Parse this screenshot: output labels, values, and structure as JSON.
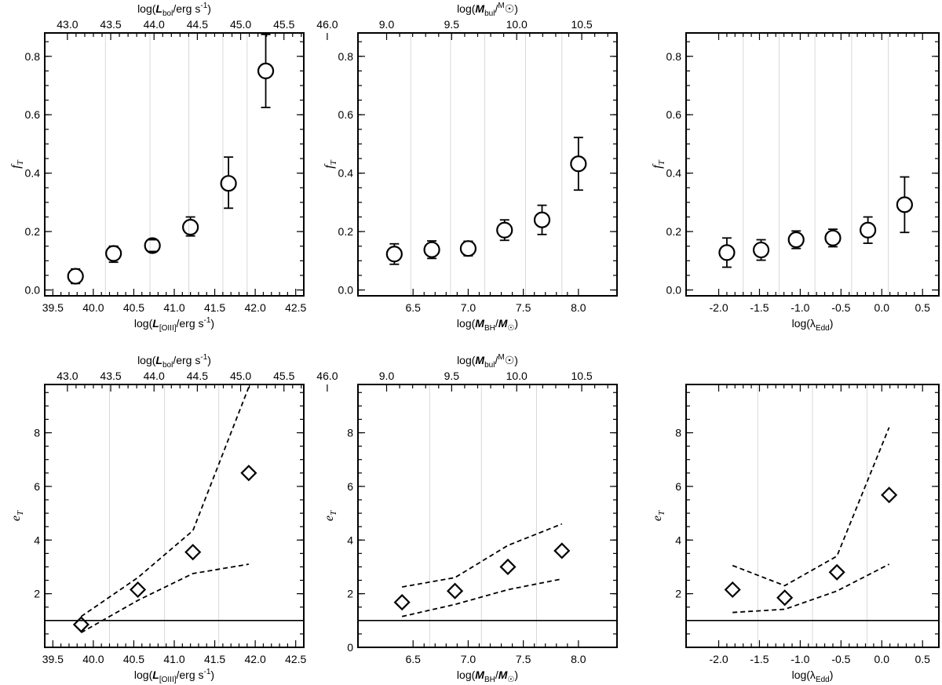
{
  "chart_data": [
    {
      "type": "scatter",
      "marker": "circle",
      "xlabel": "log(L[OIII]/erg s-1)",
      "xlabel_parts": [
        "log(",
        "L",
        "[OIII]",
        "/erg s",
        "-1",
        ")"
      ],
      "ylabel": "fT",
      "ylabel_parts": [
        "f",
        "T"
      ],
      "top_xlabel": "log(Lbol/erg s-1)",
      "top_xlabel_parts": [
        "log(",
        "L",
        "bol",
        "/erg s",
        "-1",
        ")"
      ],
      "xlim": [
        39.4,
        42.6
      ],
      "ylim": [
        -0.02,
        0.88
      ],
      "xticks": [
        39.5,
        40.0,
        40.5,
        41.0,
        41.5,
        42.0,
        42.5
      ],
      "xtick_labels": [
        "39.5",
        "40.0",
        "40.5",
        "41.0",
        "41.5",
        "42.0",
        "42.5"
      ],
      "yticks": [
        0.0,
        0.2,
        0.4,
        0.6,
        0.8
      ],
      "ytick_labels": [
        "0.0",
        "0.2",
        "0.4",
        "0.6",
        "0.8"
      ],
      "top_ticks_at_bottom": [
        39.68,
        40.21,
        40.74,
        41.28,
        41.81,
        42.34
      ],
      "top_tick_labels": [
        "43.0",
        "43.5",
        "44.0",
        "44.5",
        "45.0",
        "45.5",
        "46.0"
      ],
      "top_ticks_first_x": 39.68,
      "top_ticks_step": 0.535,
      "vgrid": [
        40.15,
        40.7,
        41.18,
        41.6,
        41.9
      ],
      "x": [
        39.78,
        40.25,
        40.73,
        41.2,
        41.67,
        42.13
      ],
      "y": [
        0.047,
        0.125,
        0.152,
        0.215,
        0.365,
        0.75
      ],
      "yerr_low": [
        0.025,
        0.03,
        0.02,
        0.03,
        0.085,
        0.125
      ],
      "yerr_high": [
        0.025,
        0.025,
        0.02,
        0.035,
        0.09,
        0.125
      ]
    },
    {
      "type": "scatter",
      "marker": "circle",
      "xlabel": "log(MBH/M☉)",
      "xlabel_parts": [
        "log(",
        "M",
        "BH",
        "/",
        "M",
        "☉",
        ")"
      ],
      "ylabel": "fT",
      "ylabel_parts": [
        "f",
        "T"
      ],
      "top_xlabel": "log(Mbul/M☉)",
      "top_xlabel_parts": [
        "log(",
        "M",
        "bul",
        "/",
        "M",
        "☉",
        ")"
      ],
      "xlim": [
        6.0,
        8.35
      ],
      "ylim": [
        -0.02,
        0.88
      ],
      "xticks": [
        6.5,
        7.0,
        7.5,
        8.0
      ],
      "xtick_labels": [
        "6.5",
        "7.0",
        "7.5",
        "8.0"
      ],
      "yticks": [
        0.0,
        0.2,
        0.4,
        0.6,
        0.8
      ],
      "ytick_labels": [
        "0.0",
        "0.2",
        "0.4",
        "0.6",
        "0.8"
      ],
      "top_tick_labels": [
        "9.0",
        "9.5",
        "10.0",
        "10.5"
      ],
      "top_ticks_first_x": 6.26,
      "top_ticks_step": 0.59,
      "vgrid": [
        6.48,
        6.84,
        7.15,
        7.52,
        7.85
      ],
      "x": [
        6.33,
        6.67,
        7.0,
        7.33,
        7.67,
        8.0
      ],
      "y": [
        0.123,
        0.138,
        0.142,
        0.205,
        0.24,
        0.432
      ],
      "yerr_low": [
        0.035,
        0.03,
        0.025,
        0.035,
        0.05,
        0.09
      ],
      "yerr_high": [
        0.035,
        0.03,
        0.025,
        0.035,
        0.05,
        0.09
      ]
    },
    {
      "type": "scatter",
      "marker": "circle",
      "xlabel": "log(λEdd)",
      "xlabel_parts": [
        "log(λ",
        "Edd",
        ")"
      ],
      "ylabel": "fT",
      "ylabel_parts": [
        "f",
        "T"
      ],
      "xlim": [
        -2.4,
        0.7
      ],
      "ylim": [
        -0.02,
        0.88
      ],
      "xticks": [
        -2.0,
        -1.5,
        -1.0,
        -0.5,
        0.0,
        0.5
      ],
      "xtick_labels": [
        "-2.0",
        "-1.5",
        "-1.0",
        "-0.5",
        "0.0",
        "0.5"
      ],
      "yticks": [
        0.0,
        0.2,
        0.4,
        0.6,
        0.8
      ],
      "ytick_labels": [
        "0.0",
        "0.2",
        "0.4",
        "0.6",
        "0.8"
      ],
      "vgrid": [
        -1.7,
        -1.26,
        -0.82,
        -0.37,
        0.08
      ],
      "x": [
        -1.9,
        -1.48,
        -1.05,
        -0.6,
        -0.17,
        0.28
      ],
      "y": [
        0.128,
        0.137,
        0.172,
        0.178,
        0.205,
        0.292
      ],
      "yerr_low": [
        0.05,
        0.035,
        0.03,
        0.03,
        0.045,
        0.095
      ],
      "yerr_high": [
        0.05,
        0.035,
        0.03,
        0.03,
        0.045,
        0.095
      ]
    },
    {
      "type": "scatter",
      "marker": "diamond",
      "xlabel": "log(L[OIII]/erg s-1)",
      "xlabel_parts": [
        "log(",
        "L",
        "[OIII]",
        "/erg s",
        "-1",
        ")"
      ],
      "ylabel": "eT",
      "ylabel_parts": [
        "e",
        "T"
      ],
      "top_xlabel": "log(Lbol/erg s-1)",
      "top_xlabel_parts": [
        "log(",
        "L",
        "bol",
        "/erg s",
        "-1",
        ")"
      ],
      "xlim": [
        39.4,
        42.6
      ],
      "ylim": [
        0,
        9.8
      ],
      "xticks": [
        39.5,
        40.0,
        40.5,
        41.0,
        41.5,
        42.0,
        42.5
      ],
      "xtick_labels": [
        "39.5",
        "40.0",
        "40.5",
        "41.0",
        "41.5",
        "42.0",
        "42.5"
      ],
      "yticks": [
        2,
        4,
        6,
        8
      ],
      "ytick_labels": [
        "2",
        "4",
        "6",
        "8"
      ],
      "top_tick_labels": [
        "43.0",
        "43.5",
        "44.0",
        "44.5",
        "45.0",
        "45.5",
        "46.0"
      ],
      "top_ticks_first_x": 39.68,
      "top_ticks_step": 0.535,
      "vgrid": [
        40.2,
        40.88,
        41.55
      ],
      "x": [
        39.85,
        40.55,
        41.23,
        41.92
      ],
      "y": [
        0.85,
        2.15,
        3.55,
        6.5
      ],
      "upper_band": {
        "x": [
          39.85,
          40.55,
          41.23,
          41.92
        ],
        "y": [
          1.15,
          2.6,
          4.35,
          9.7
        ]
      },
      "lower_band": {
        "x": [
          39.85,
          40.55,
          41.23,
          41.92
        ],
        "y": [
          0.55,
          1.75,
          2.75,
          3.1
        ]
      },
      "reference_line": 1.0
    },
    {
      "type": "scatter",
      "marker": "diamond",
      "xlabel": "log(MBH/M☉)",
      "xlabel_parts": [
        "log(",
        "M",
        "BH",
        "/",
        "M",
        "☉",
        ")"
      ],
      "ylabel": "eT",
      "ylabel_parts": [
        "e",
        "T"
      ],
      "top_xlabel": "log(Mbul/M☉)",
      "top_xlabel_parts": [
        "log(",
        "M",
        "bul",
        "/",
        "M",
        "☉",
        ")"
      ],
      "xlim": [
        6.0,
        8.35
      ],
      "ylim": [
        0,
        9.8
      ],
      "xticks": [
        6.5,
        7.0,
        7.5,
        8.0
      ],
      "xtick_labels": [
        "6.5",
        "7.0",
        "7.5",
        "8.0"
      ],
      "yticks": [
        0,
        2,
        4,
        6,
        8
      ],
      "ytick_labels": [
        "0",
        "2",
        "4",
        "6",
        "8"
      ],
      "top_tick_labels": [
        "9.0",
        "9.5",
        "10.0",
        "10.5"
      ],
      "top_ticks_first_x": 6.26,
      "top_ticks_step": 0.59,
      "vgrid": [
        6.65,
        7.12,
        7.62
      ],
      "x": [
        6.4,
        6.88,
        7.36,
        7.85
      ],
      "y": [
        1.68,
        2.1,
        3.0,
        3.6
      ],
      "upper_band": {
        "x": [
          6.4,
          6.88,
          7.36,
          7.85
        ],
        "y": [
          2.25,
          2.6,
          3.8,
          4.6
        ]
      },
      "lower_band": {
        "x": [
          6.4,
          6.88,
          7.36,
          7.85
        ],
        "y": [
          1.15,
          1.6,
          2.15,
          2.55
        ]
      },
      "reference_line": 1.0
    },
    {
      "type": "scatter",
      "marker": "diamond",
      "xlabel": "log(λEdd)",
      "xlabel_parts": [
        "log(λ",
        "Edd",
        ")"
      ],
      "ylabel": "eT",
      "ylabel_parts": [
        "e",
        "T"
      ],
      "xlim": [
        -2.4,
        0.7
      ],
      "ylim": [
        0,
        9.8
      ],
      "xticks": [
        -2.0,
        -1.5,
        -1.0,
        -0.5,
        0.0,
        0.5
      ],
      "xtick_labels": [
        "-2.0",
        "-1.5",
        "-1.0",
        "-0.5",
        "0.0",
        "0.5"
      ],
      "yticks": [
        2,
        4,
        6,
        8
      ],
      "ytick_labels": [
        "2",
        "4",
        "6",
        "8"
      ],
      "vgrid": [
        -1.52,
        -0.85,
        -0.18
      ],
      "x": [
        -1.83,
        -1.19,
        -0.55,
        0.09
      ],
      "y": [
        2.15,
        1.85,
        2.8,
        5.68
      ],
      "upper_band": {
        "x": [
          -1.83,
          -1.19,
          -0.55,
          0.09
        ],
        "y": [
          3.05,
          2.3,
          3.4,
          8.2
        ]
      },
      "lower_band": {
        "x": [
          -1.83,
          -1.19,
          -0.55,
          0.09
        ],
        "y": [
          1.3,
          1.42,
          2.1,
          3.1
        ]
      },
      "reference_line": 1.0
    }
  ]
}
